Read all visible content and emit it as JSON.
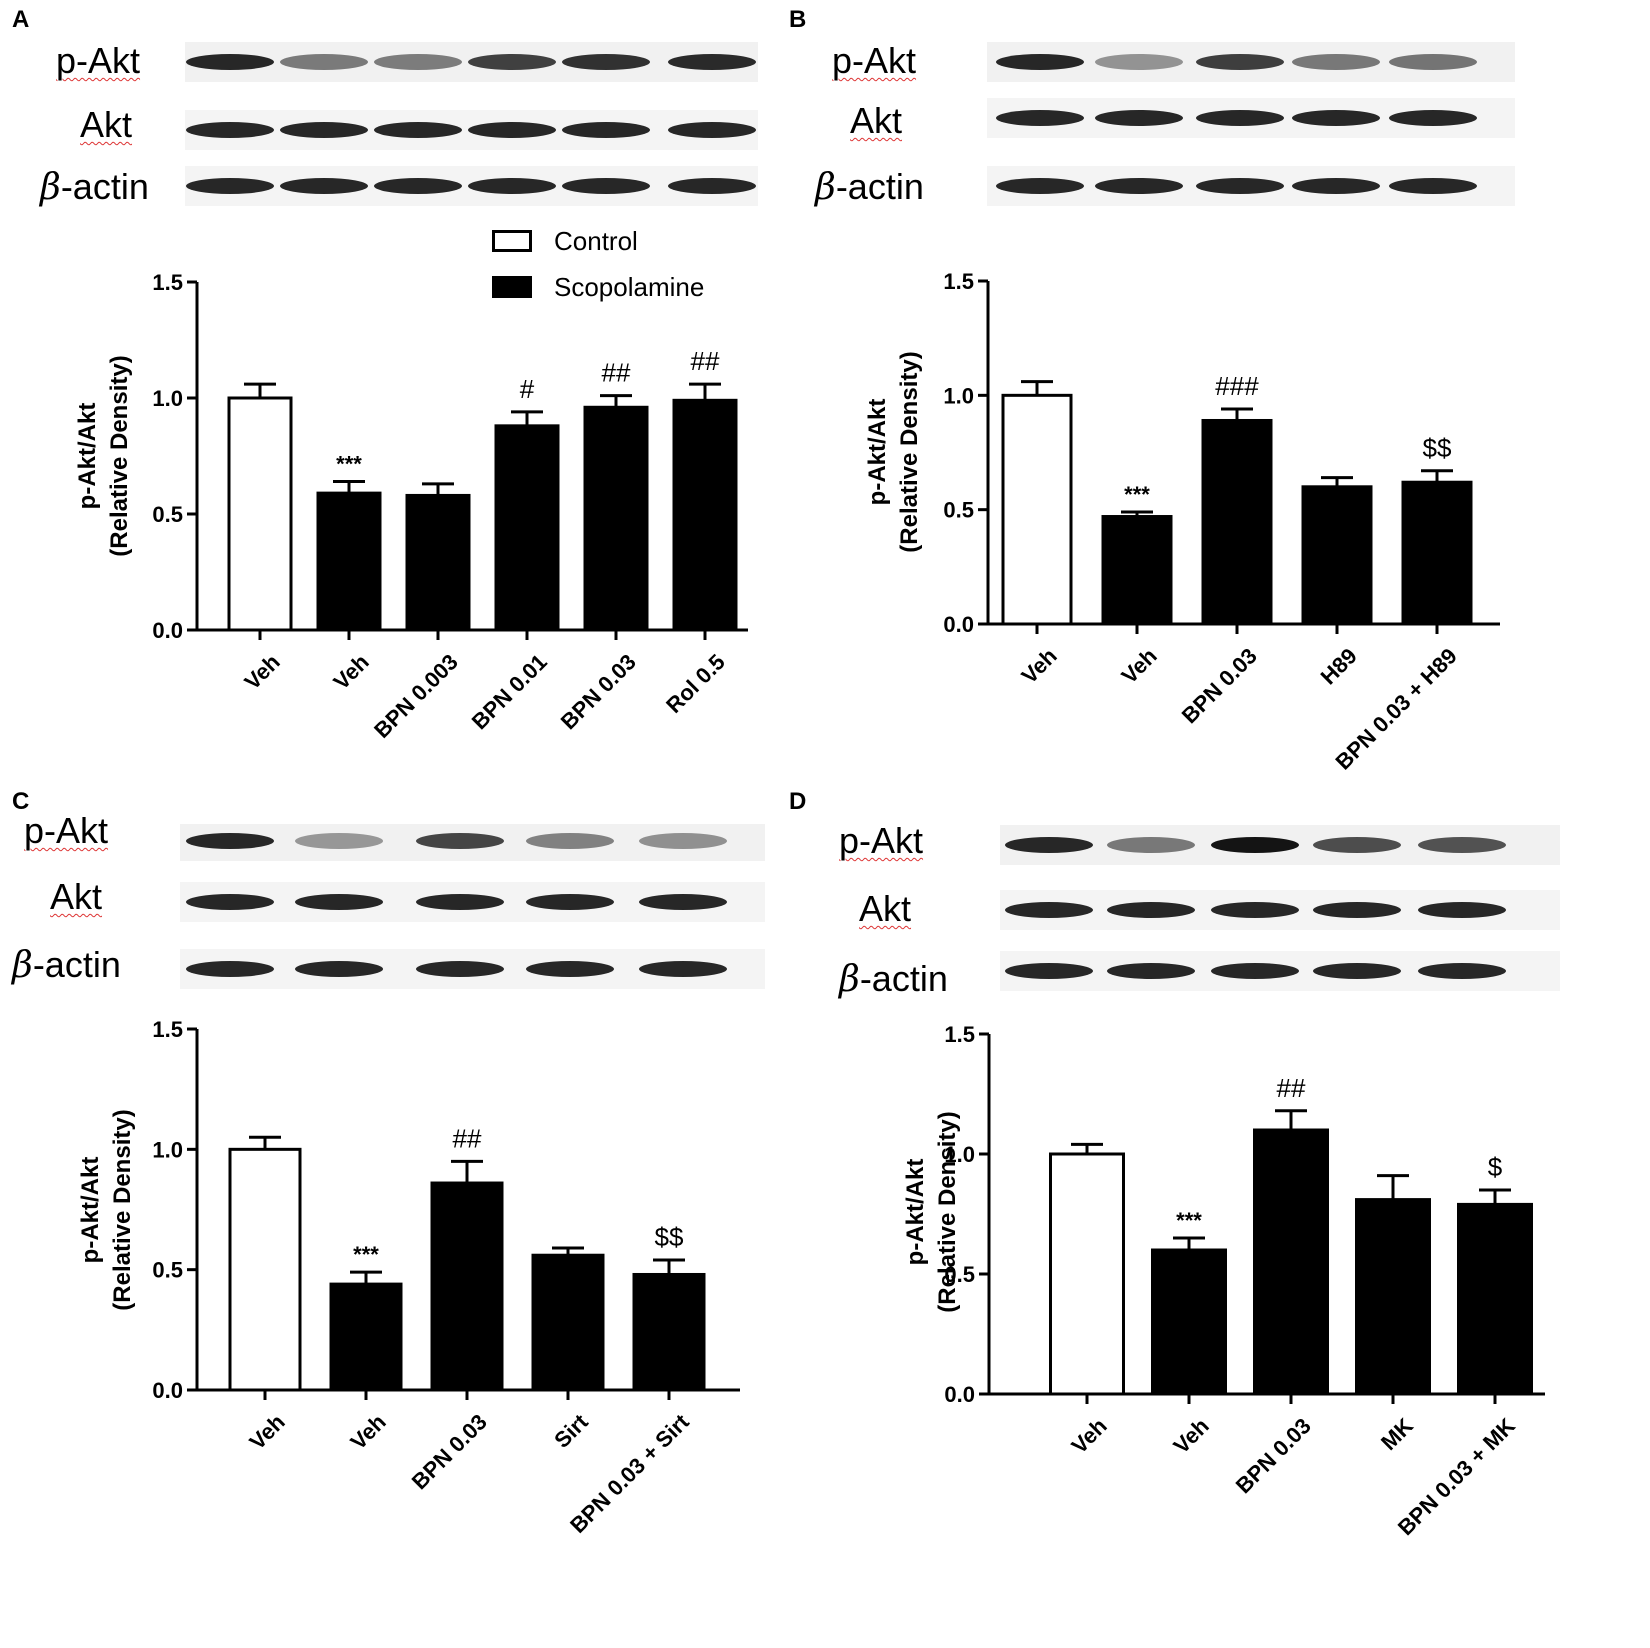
{
  "legend": {
    "control": "Control",
    "scopolamine": "Scopolamine"
  },
  "blot_labels": {
    "p_akt": "p-Akt",
    "akt": "Akt",
    "beta": "β",
    "actin": "-actin"
  },
  "chart_data": [
    {
      "panel": "A",
      "type": "bar",
      "ylabel": "p-Akt/Akt",
      "ylabel2": "(Relative Density)",
      "ylim": [
        0,
        1.5
      ],
      "yticks": [
        "0.0",
        "0.5",
        "1.0",
        "1.5"
      ],
      "categories": [
        "Veh",
        "Veh",
        "BPN 0.003",
        "BPN 0.01",
        "BPN 0.03",
        "Rol 0.5"
      ],
      "values": [
        1.0,
        0.59,
        0.58,
        0.88,
        0.96,
        0.99
      ],
      "errors": [
        0.06,
        0.05,
        0.05,
        0.06,
        0.05,
        0.07
      ],
      "groups": [
        "Control",
        "Scopolamine",
        "Scopolamine",
        "Scopolamine",
        "Scopolamine",
        "Scopolamine"
      ],
      "annotations": [
        "",
        "***",
        "",
        "#",
        "##",
        "##"
      ]
    },
    {
      "panel": "B",
      "type": "bar",
      "ylabel": "p-Akt/Akt",
      "ylabel2": "(Relative Density)",
      "ylim": [
        0,
        1.5
      ],
      "yticks": [
        "0.0",
        "0.5",
        "1.0",
        "1.5"
      ],
      "categories": [
        "Veh",
        "Veh",
        "BPN 0.03",
        "H89",
        "BPN 0.03 + H89"
      ],
      "values": [
        1.0,
        0.47,
        0.89,
        0.6,
        0.62
      ],
      "errors": [
        0.06,
        0.02,
        0.05,
        0.04,
        0.05
      ],
      "groups": [
        "Control",
        "Scopolamine",
        "Scopolamine",
        "Scopolamine",
        "Scopolamine"
      ],
      "annotations": [
        "",
        "***",
        "###",
        "",
        "$$"
      ]
    },
    {
      "panel": "C",
      "type": "bar",
      "ylabel": "p-Akt/Akt",
      "ylabel2": "(Relative Density)",
      "ylim": [
        0,
        1.5
      ],
      "yticks": [
        "0.0",
        "0.5",
        "1.0",
        "1.5"
      ],
      "categories": [
        "Veh",
        "Veh",
        "BPN 0.03",
        "Sirt",
        "BPN 0.03 + Sirt"
      ],
      "values": [
        1.0,
        0.44,
        0.86,
        0.56,
        0.48
      ],
      "errors": [
        0.05,
        0.05,
        0.09,
        0.03,
        0.06
      ],
      "groups": [
        "Control",
        "Scopolamine",
        "Scopolamine",
        "Scopolamine",
        "Scopolamine"
      ],
      "annotations": [
        "",
        "***",
        "##",
        "",
        "$$"
      ]
    },
    {
      "panel": "D",
      "type": "bar",
      "ylabel": "p-Akt/Akt",
      "ylabel2": "(Relative Density)",
      "ylim": [
        0,
        1.5
      ],
      "yticks": [
        "0.0",
        "0.5",
        "1.0",
        "1.5"
      ],
      "categories": [
        "Veh",
        "Veh",
        "BPN 0.03",
        "MK",
        "BPN 0.03 + MK"
      ],
      "values": [
        1.0,
        0.6,
        1.1,
        0.81,
        0.79
      ],
      "errors": [
        0.04,
        0.05,
        0.08,
        0.1,
        0.06
      ],
      "groups": [
        "Control",
        "Scopolamine",
        "Scopolamine",
        "Scopolamine",
        "Scopolamine"
      ],
      "annotations": [
        "",
        "***",
        "##",
        "",
        "$"
      ]
    }
  ]
}
